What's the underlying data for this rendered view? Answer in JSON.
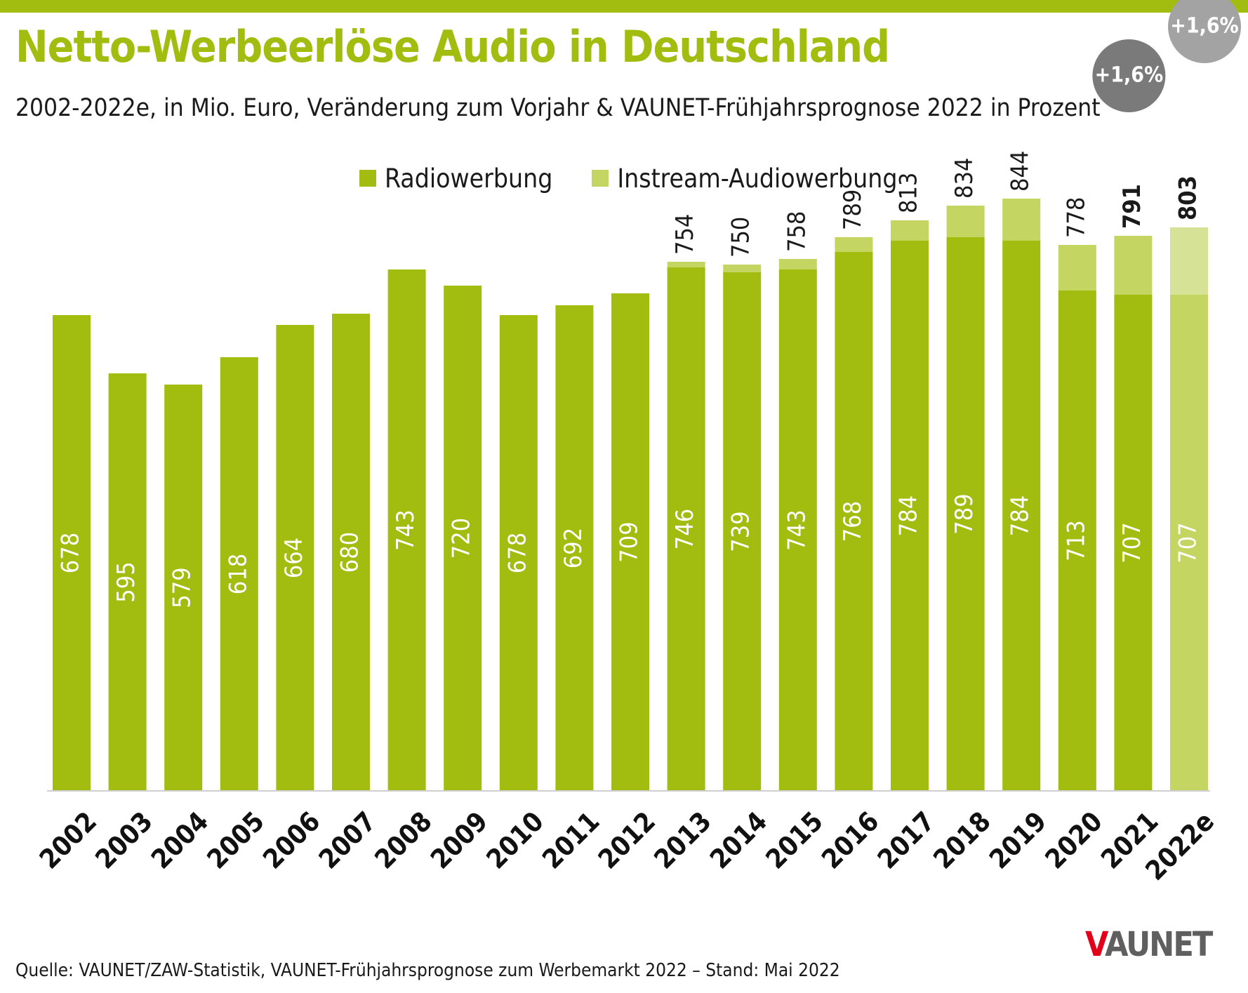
{
  "header": {
    "title": "Netto-Werbeerlöse Audio in Deutschland",
    "subtitle": "2002-2022e, in Mio. Euro, Veränderung zum Vorjahr & VAUNET-Frühjahrsprognose 2022 in Prozent"
  },
  "footer": {
    "source": "Quelle: VAUNET/ZAW-Statistik, VAUNET-Frühjahrsprognose zum Werbemarkt 2022 – Stand: Mai 2022",
    "logo_v": "V",
    "logo_rest": "AUNET"
  },
  "colors": {
    "accent": "#a2bc10",
    "radio": "#a2bc10",
    "instream": "#c4d661",
    "radio_forecast": "#c4d661",
    "instream_forecast": "#d6e396",
    "badge_2021": "#7a7a7a",
    "badge_2022": "#a3a3a3",
    "logo_red": "#e3001b"
  },
  "chart_data": {
    "type": "bar",
    "stacked": true,
    "title": "Netto-Werbeerlöse Audio in Deutschland",
    "subtitle": "2002-2022e, in Mio. Euro, Veränderung zum Vorjahr & VAUNET-Frühjahrsprognose 2022 in Prozent",
    "categories": [
      "2002",
      "2003",
      "2004",
      "2005",
      "2006",
      "2007",
      "2008",
      "2009",
      "2010",
      "2011",
      "2012",
      "2013",
      "2014",
      "2015",
      "2016",
      "2017",
      "2018",
      "2019",
      "2020",
      "2021",
      "2022e"
    ],
    "series": [
      {
        "name": "Radiowerbung",
        "values": [
          678,
          595,
          579,
          618,
          664,
          680,
          743,
          720,
          678,
          692,
          709,
          746,
          739,
          743,
          768,
          784,
          789,
          784,
          713,
          707,
          707
        ]
      },
      {
        "name": "Instream-Audiowerbung",
        "values": [
          0,
          0,
          0,
          0,
          0,
          0,
          0,
          0,
          0,
          0,
          0,
          8,
          11,
          15,
          21,
          29,
          45,
          60,
          65,
          84,
          96
        ]
      }
    ],
    "totals": [
      "",
      "",
      "",
      "",
      "",
      "",
      "",
      "",
      "",
      "",
      "",
      "754",
      "750",
      "758",
      "789",
      "813",
      "834",
      "844",
      "778",
      "791",
      "803"
    ],
    "bold_totals": [
      "2021",
      "2022e"
    ],
    "badges": [
      {
        "category": "2021",
        "label": "+1,6%"
      },
      {
        "category": "2022e",
        "label": "+1,6%"
      }
    ],
    "ylim": [
      0,
      850
    ],
    "grid": false,
    "legend": "top-center",
    "xlabel": "",
    "ylabel": ""
  }
}
